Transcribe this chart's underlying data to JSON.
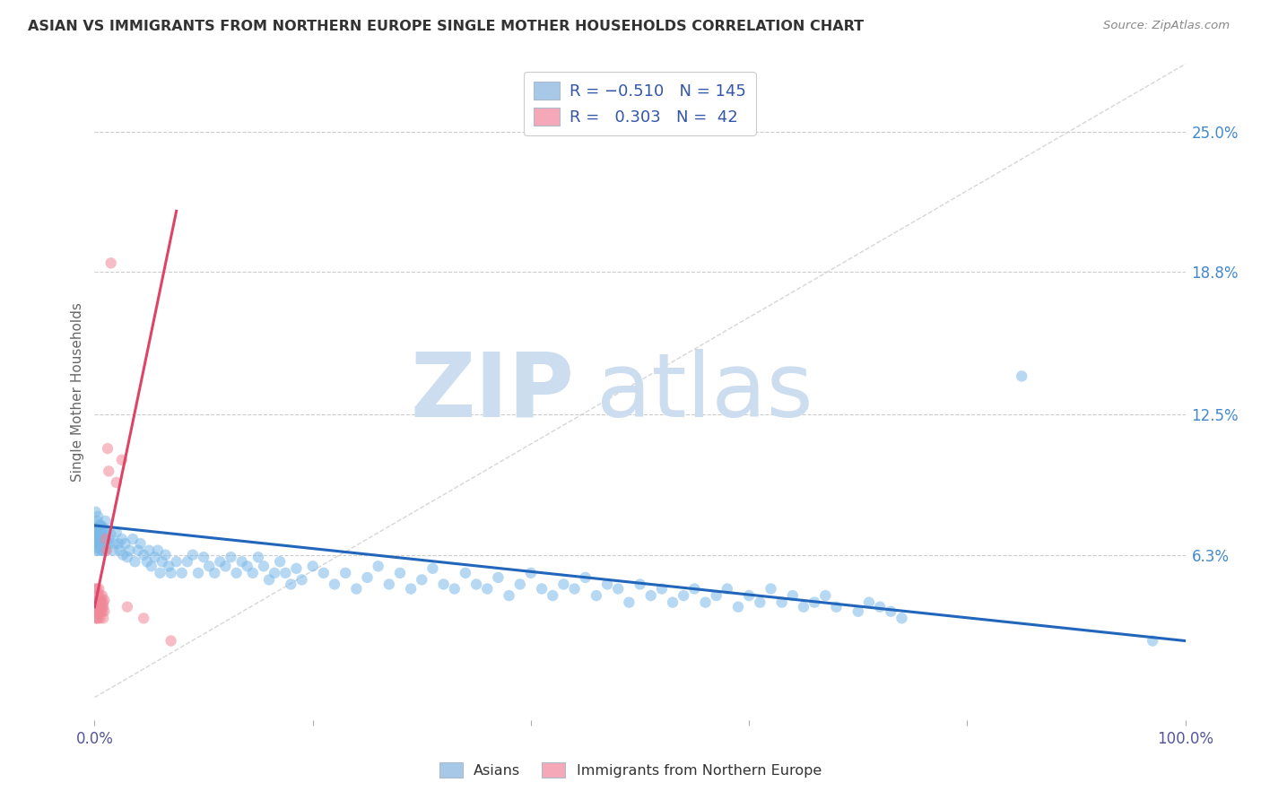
{
  "title": "ASIAN VS IMMIGRANTS FROM NORTHERN EUROPE SINGLE MOTHER HOUSEHOLDS CORRELATION CHART",
  "source": "Source: ZipAtlas.com",
  "ylabel": "Single Mother Households",
  "right_ytick_labels": [
    "25.0%",
    "18.8%",
    "12.5%",
    "6.3%"
  ],
  "right_ytick_values": [
    0.25,
    0.188,
    0.125,
    0.063
  ],
  "legend_label1": "Asians",
  "legend_label2": "Immigrants from Northern Europe",
  "blue_color": "#7ab8e8",
  "pink_color": "#f08898",
  "blue_line_color": "#2266bb",
  "pink_line_color": "#dd4466",
  "watermark_color": "#ccddf0",
  "xlim": [
    0.0,
    1.0
  ],
  "ylim": [
    -0.01,
    0.28
  ],
  "blue_line_x": [
    0.0,
    1.0
  ],
  "blue_line_y": [
    0.076,
    0.025
  ],
  "pink_line_x": [
    0.0,
    0.075
  ],
  "pink_line_y": [
    0.04,
    0.215
  ],
  "diagonal_line_x": [
    0.0,
    1.0
  ],
  "diagonal_line_y": [
    0.0,
    0.28
  ],
  "blue_scatter_x": [
    0.001,
    0.001,
    0.001,
    0.001,
    0.002,
    0.002,
    0.002,
    0.002,
    0.002,
    0.003,
    0.003,
    0.003,
    0.003,
    0.003,
    0.003,
    0.004,
    0.004,
    0.004,
    0.004,
    0.005,
    0.005,
    0.005,
    0.005,
    0.006,
    0.006,
    0.006,
    0.007,
    0.007,
    0.007,
    0.008,
    0.008,
    0.008,
    0.009,
    0.009,
    0.01,
    0.01,
    0.01,
    0.012,
    0.013,
    0.015,
    0.017,
    0.018,
    0.02,
    0.022,
    0.023,
    0.025,
    0.026,
    0.028,
    0.03,
    0.032,
    0.035,
    0.037,
    0.04,
    0.042,
    0.045,
    0.048,
    0.05,
    0.052,
    0.055,
    0.058,
    0.06,
    0.062,
    0.065,
    0.068,
    0.07,
    0.075,
    0.08,
    0.085,
    0.09,
    0.095,
    0.1,
    0.105,
    0.11,
    0.115,
    0.12,
    0.125,
    0.13,
    0.135,
    0.14,
    0.145,
    0.15,
    0.155,
    0.16,
    0.165,
    0.17,
    0.175,
    0.18,
    0.185,
    0.19,
    0.2,
    0.21,
    0.22,
    0.23,
    0.24,
    0.25,
    0.26,
    0.27,
    0.28,
    0.29,
    0.3,
    0.31,
    0.32,
    0.33,
    0.34,
    0.35,
    0.36,
    0.37,
    0.38,
    0.39,
    0.4,
    0.41,
    0.42,
    0.43,
    0.44,
    0.45,
    0.46,
    0.47,
    0.48,
    0.49,
    0.5,
    0.51,
    0.52,
    0.53,
    0.54,
    0.55,
    0.56,
    0.57,
    0.58,
    0.59,
    0.6,
    0.61,
    0.62,
    0.63,
    0.64,
    0.65,
    0.66,
    0.67,
    0.68,
    0.7,
    0.71,
    0.72,
    0.73,
    0.74,
    0.85,
    0.97
  ],
  "blue_scatter_y": [
    0.075,
    0.07,
    0.082,
    0.068,
    0.078,
    0.073,
    0.068,
    0.075,
    0.065,
    0.072,
    0.08,
    0.066,
    0.071,
    0.075,
    0.068,
    0.073,
    0.065,
    0.076,
    0.07,
    0.068,
    0.073,
    0.076,
    0.07,
    0.065,
    0.073,
    0.076,
    0.068,
    0.074,
    0.07,
    0.072,
    0.065,
    0.075,
    0.068,
    0.07,
    0.073,
    0.065,
    0.078,
    0.068,
    0.07,
    0.072,
    0.065,
    0.068,
    0.073,
    0.068,
    0.065,
    0.07,
    0.063,
    0.068,
    0.062,
    0.065,
    0.07,
    0.06,
    0.065,
    0.068,
    0.063,
    0.06,
    0.065,
    0.058,
    0.062,
    0.065,
    0.055,
    0.06,
    0.063,
    0.058,
    0.055,
    0.06,
    0.055,
    0.06,
    0.063,
    0.055,
    0.062,
    0.058,
    0.055,
    0.06,
    0.058,
    0.062,
    0.055,
    0.06,
    0.058,
    0.055,
    0.062,
    0.058,
    0.052,
    0.055,
    0.06,
    0.055,
    0.05,
    0.057,
    0.052,
    0.058,
    0.055,
    0.05,
    0.055,
    0.048,
    0.053,
    0.058,
    0.05,
    0.055,
    0.048,
    0.052,
    0.057,
    0.05,
    0.048,
    0.055,
    0.05,
    0.048,
    0.053,
    0.045,
    0.05,
    0.055,
    0.048,
    0.045,
    0.05,
    0.048,
    0.053,
    0.045,
    0.05,
    0.048,
    0.042,
    0.05,
    0.045,
    0.048,
    0.042,
    0.045,
    0.048,
    0.042,
    0.045,
    0.048,
    0.04,
    0.045,
    0.042,
    0.048,
    0.042,
    0.045,
    0.04,
    0.042,
    0.045,
    0.04,
    0.038,
    0.042,
    0.04,
    0.038,
    0.035,
    0.142,
    0.025
  ],
  "pink_scatter_x": [
    0.001,
    0.001,
    0.001,
    0.001,
    0.002,
    0.002,
    0.002,
    0.002,
    0.002,
    0.003,
    0.003,
    0.003,
    0.003,
    0.003,
    0.004,
    0.004,
    0.004,
    0.005,
    0.005,
    0.005,
    0.005,
    0.006,
    0.006,
    0.006,
    0.007,
    0.007,
    0.007,
    0.008,
    0.008,
    0.008,
    0.009,
    0.009,
    0.01,
    0.011,
    0.012,
    0.013,
    0.015,
    0.02,
    0.025,
    0.03,
    0.045,
    0.07
  ],
  "pink_scatter_y": [
    0.042,
    0.038,
    0.035,
    0.048,
    0.043,
    0.038,
    0.042,
    0.048,
    0.035,
    0.04,
    0.045,
    0.038,
    0.042,
    0.035,
    0.043,
    0.038,
    0.048,
    0.04,
    0.045,
    0.042,
    0.035,
    0.038,
    0.043,
    0.042,
    0.04,
    0.038,
    0.045,
    0.042,
    0.035,
    0.04,
    0.043,
    0.038,
    0.07,
    0.065,
    0.11,
    0.1,
    0.192,
    0.095,
    0.105,
    0.04,
    0.035,
    0.025
  ]
}
